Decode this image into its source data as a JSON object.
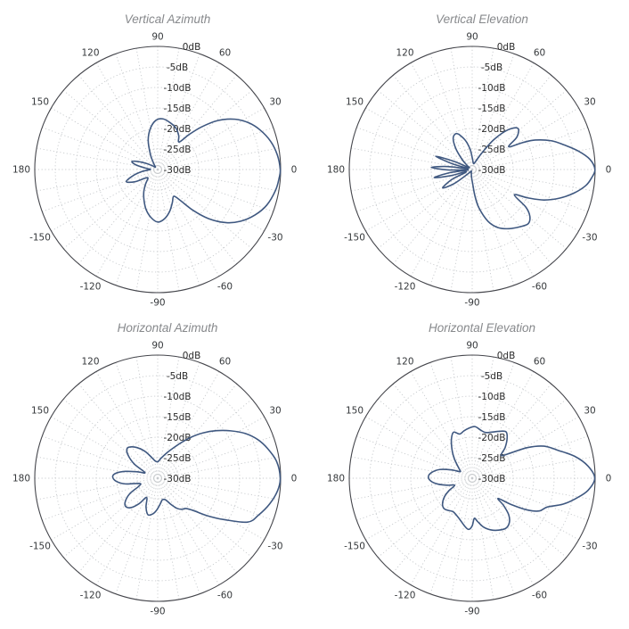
{
  "style": {
    "background": "#ffffff",
    "curve_color": "#3f5880",
    "outer_ring_color": "#45464c",
    "grid_color": "#c7cacd",
    "angle_label_color": "#35383b",
    "db_label_color": "#2b2b2b",
    "title_color": "#87898c"
  },
  "axes": {
    "radial_unit": "dB",
    "radial_max_db": 0,
    "radial_min_db": -30,
    "radial_step_db": 5,
    "radial_tick_labels": [
      "0dB",
      "-5dB",
      "-10dB",
      "-15dB",
      "-20dB",
      "-25dB",
      "-30dB"
    ],
    "angular_tick_step_deg": 30,
    "angular_minor_step_deg": 10,
    "angular_tick_labels": [
      "0",
      "30",
      "60",
      "90",
      "120",
      "150",
      "180",
      "-150",
      "-120",
      "-90",
      "-60",
      "-30"
    ],
    "grid_style": "dotted",
    "legend": "none"
  },
  "chart_data": [
    {
      "type": "polar-line",
      "title": "Vertical Azimuth",
      "r_axis": "0dB outer ring to -30dB center, 5dB rings",
      "series": [
        {
          "name": "antenna-gain",
          "unit": "dB",
          "points_deg_db": [
            [
              0,
              -0.1
            ],
            [
              7,
              -0.6
            ],
            [
              14,
              -1.6
            ],
            [
              21,
              -3.2
            ],
            [
              27,
              -5
            ],
            [
              33,
              -7.5
            ],
            [
              39,
              -11
            ],
            [
              44,
              -15
            ],
            [
              48,
              -18.5
            ],
            [
              52,
              -21.5
            ],
            [
              58,
              -20.3
            ],
            [
              66,
              -19
            ],
            [
              75,
              -18.2
            ],
            [
              84,
              -17.6
            ],
            [
              92,
              -18
            ],
            [
              100,
              -19.8
            ],
            [
              108,
              -22.5
            ],
            [
              116,
              -26
            ],
            [
              124,
              -28.3
            ],
            [
              134,
              -29.2
            ],
            [
              144,
              -28.5
            ],
            [
              152,
              -26.8
            ],
            [
              158,
              -24.8
            ],
            [
              163,
              -23.4
            ],
            [
              168,
              -24.6
            ],
            [
              174,
              -27.2
            ],
            [
              180,
              -28.2
            ],
            [
              187,
              -26.2
            ],
            [
              194,
              -23.8
            ],
            [
              201,
              -21.8
            ],
            [
              208,
              -23.6
            ],
            [
              215,
              -26.4
            ],
            [
              222,
              -26.8
            ],
            [
              230,
              -25.4
            ],
            [
              238,
              -23.6
            ],
            [
              246,
              -21.8
            ],
            [
              254,
              -19.8
            ],
            [
              262,
              -18.2
            ],
            [
              270,
              -17.2
            ],
            [
              278,
              -17.9
            ],
            [
              286,
              -19.4
            ],
            [
              294,
              -21.2
            ],
            [
              301,
              -22.4
            ],
            [
              306,
              -20.8
            ],
            [
              311,
              -16.8
            ],
            [
              316,
              -12.8
            ],
            [
              322,
              -9
            ],
            [
              328,
              -6.2
            ],
            [
              335,
              -3.8
            ],
            [
              342,
              -2
            ],
            [
              350,
              -0.8
            ],
            [
              356,
              -0.3
            ]
          ]
        }
      ]
    },
    {
      "type": "polar-line",
      "title": "Vertical Elevation",
      "r_axis": "0dB outer ring to -30dB center, 5dB rings",
      "series": [
        {
          "name": "antenna-gain",
          "unit": "dB",
          "points_deg_db": [
            [
              0,
              -0.05
            ],
            [
              5,
              -1.2
            ],
            [
              10,
              -3.8
            ],
            [
              15,
              -6.8
            ],
            [
              20,
              -9.5
            ],
            [
              25,
              -13
            ],
            [
              28,
              -16
            ],
            [
              32,
              -19.5
            ],
            [
              36,
              -16.5
            ],
            [
              42,
              -15
            ],
            [
              48,
              -17
            ],
            [
              54,
              -21
            ],
            [
              60,
              -25.5
            ],
            [
              68,
              -28
            ],
            [
              78,
              -28.5
            ],
            [
              88,
              -27.5
            ],
            [
              96,
              -25
            ],
            [
              104,
              -22.5
            ],
            [
              113,
              -20.5
            ],
            [
              121,
              -21
            ],
            [
              128,
              -23.5
            ],
            [
              135,
              -26.5
            ],
            [
              142,
              -28.5
            ],
            [
              150,
              -29
            ],
            [
              156,
              -25
            ],
            [
              160,
              -20.5
            ],
            [
              164,
              -25
            ],
            [
              169,
              -29
            ],
            [
              173,
              -24
            ],
            [
              177,
              -20
            ],
            [
              181,
              -24
            ],
            [
              185,
              -29
            ],
            [
              188,
              -24.5
            ],
            [
              192,
              -20.5
            ],
            [
              196,
              -24.5
            ],
            [
              201,
              -28.5
            ],
            [
              206,
              -24.5
            ],
            [
              212,
              -21.5
            ],
            [
              218,
              -24.5
            ],
            [
              225,
              -28.5
            ],
            [
              235,
              -29.5
            ],
            [
              247,
              -29.5
            ],
            [
              258,
              -29
            ],
            [
              266,
              -28
            ],
            [
              272,
              -26.5
            ],
            [
              276,
              -23.5
            ],
            [
              280,
              -20.5
            ],
            [
              287,
              -16.8
            ],
            [
              294,
              -14.5
            ],
            [
              302,
              -13
            ],
            [
              310,
              -11.8
            ],
            [
              316,
              -11
            ],
            [
              321,
              -11.9
            ],
            [
              325,
              -14
            ],
            [
              329,
              -18
            ],
            [
              333,
              -14.8
            ],
            [
              337,
              -11
            ],
            [
              342,
              -7.5
            ],
            [
              347,
              -4.5
            ],
            [
              352,
              -2
            ],
            [
              356,
              -0.8
            ]
          ]
        }
      ]
    },
    {
      "type": "polar-line",
      "title": "Horizontal Azimuth",
      "r_axis": "0dB outer ring to -30dB center, 5dB rings",
      "series": [
        {
          "name": "antenna-gain",
          "unit": "dB",
          "points_deg_db": [
            [
              0,
              -0.1
            ],
            [
              8,
              -0.7
            ],
            [
              15,
              -2.2
            ],
            [
              21,
              -3.8
            ],
            [
              27,
              -6
            ],
            [
              33,
              -8.8
            ],
            [
              39,
              -11.6
            ],
            [
              45,
              -14.4
            ],
            [
              51,
              -17.2
            ],
            [
              57,
              -19.8
            ],
            [
              63,
              -21.8
            ],
            [
              70,
              -23.4
            ],
            [
              80,
              -25
            ],
            [
              90,
              -26
            ],
            [
              100,
              -25.6
            ],
            [
              108,
              -24.4
            ],
            [
              116,
              -22.6
            ],
            [
              124,
              -21
            ],
            [
              131,
              -19.9
            ],
            [
              136,
              -19.6
            ],
            [
              142,
              -20.8
            ],
            [
              149,
              -23.4
            ],
            [
              156,
              -26.6
            ],
            [
              162,
              -25
            ],
            [
              168,
              -22
            ],
            [
              173,
              -19.8
            ],
            [
              178,
              -19
            ],
            [
              184,
              -19.8
            ],
            [
              190,
              -22
            ],
            [
              196,
              -25.4
            ],
            [
              203,
              -25
            ],
            [
              209,
              -22.2
            ],
            [
              216,
              -20.2
            ],
            [
              222,
              -19.6
            ],
            [
              228,
              -20.4
            ],
            [
              234,
              -22.4
            ],
            [
              240,
              -24.6
            ],
            [
              248,
              -22.4
            ],
            [
              255,
              -20.8
            ],
            [
              262,
              -21.2
            ],
            [
              268,
              -22.2
            ],
            [
              275,
              -23.6
            ],
            [
              282,
              -24.6
            ],
            [
              290,
              -24.4
            ],
            [
              297,
              -22.8
            ],
            [
              303,
              -21.2
            ],
            [
              308,
              -20.4
            ],
            [
              313,
              -19.9
            ],
            [
              318,
              -18.2
            ],
            [
              323,
              -14.8
            ],
            [
              328,
              -11
            ],
            [
              334,
              -5.6
            ],
            [
              340,
              -3.8
            ],
            [
              347,
              -2
            ],
            [
              354,
              -0.6
            ]
          ]
        }
      ]
    },
    {
      "type": "polar-line",
      "title": "Horizontal Elevation",
      "r_axis": "0dB outer ring to -30dB center, 5dB rings",
      "series": [
        {
          "name": "antenna-gain",
          "unit": "dB",
          "points_deg_db": [
            [
              0,
              -0.1
            ],
            [
              6,
              -1.6
            ],
            [
              12,
              -4.4
            ],
            [
              18,
              -8
            ],
            [
              24,
              -10.8
            ],
            [
              29,
              -14.6
            ],
            [
              33,
              -18.6
            ],
            [
              38,
              -21
            ],
            [
              43,
              -19
            ],
            [
              49,
              -17
            ],
            [
              54,
              -16
            ],
            [
              60,
              -16.8
            ],
            [
              67,
              -17.8
            ],
            [
              74,
              -18.4
            ],
            [
              80,
              -18.1
            ],
            [
              87,
              -17.4
            ],
            [
              94,
              -17.8
            ],
            [
              100,
              -18.3
            ],
            [
              106,
              -18.8
            ],
            [
              112,
              -17.9
            ],
            [
              118,
              -19.2
            ],
            [
              125,
              -21.4
            ],
            [
              132,
              -23.4
            ],
            [
              139,
              -25.2
            ],
            [
              146,
              -26.3
            ],
            [
              152,
              -26.6
            ],
            [
              158,
              -24.6
            ],
            [
              165,
              -21.8
            ],
            [
              172,
              -20
            ],
            [
              178,
              -19.3
            ],
            [
              184,
              -19.9
            ],
            [
              190,
              -21.6
            ],
            [
              196,
              -23.8
            ],
            [
              202,
              -25.4
            ],
            [
              208,
              -23.6
            ],
            [
              214,
              -21.8
            ],
            [
              221,
              -20.4
            ],
            [
              227,
              -19.9
            ],
            [
              233,
              -20.2
            ],
            [
              240,
              -20.6
            ],
            [
              247,
              -20.2
            ],
            [
              254,
              -19.4
            ],
            [
              261,
              -18.2
            ],
            [
              266,
              -17.5
            ],
            [
              270,
              -18.4
            ],
            [
              273,
              -20.2
            ],
            [
              277,
              -19.4
            ],
            [
              283,
              -17.8
            ],
            [
              290,
              -16.6
            ],
            [
              297,
              -15.8
            ],
            [
              304,
              -15.3
            ],
            [
              310,
              -15.9
            ],
            [
              315,
              -17.4
            ],
            [
              319,
              -19.8
            ],
            [
              322,
              -22
            ],
            [
              326,
              -18.6
            ],
            [
              330,
              -14.6
            ],
            [
              334,
              -11.8
            ],
            [
              339,
              -10.4
            ],
            [
              344,
              -7
            ],
            [
              349,
              -4.2
            ],
            [
              354,
              -1.6
            ]
          ]
        }
      ]
    }
  ]
}
